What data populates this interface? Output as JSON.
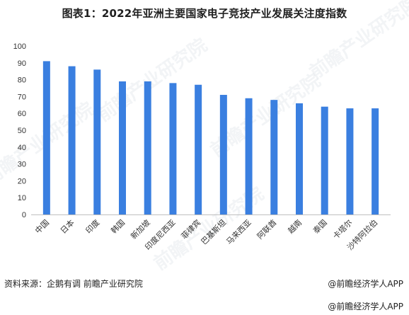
{
  "title": "图表1：2022年亚洲主要国家电子竞技产业发展关注度指数",
  "source": "资料来源：企鹅有调 前瞻产业研究院",
  "credit": "@前瞻经济学人APP",
  "credit_bottom": "@前瞻经济学人APP",
  "watermark": "前瞻产业研究院",
  "colors": {
    "bar": "#3a7fe0",
    "axis": "#bfbfbf",
    "text": "#333333"
  },
  "chart_data": {
    "type": "bar",
    "categories": [
      "中国",
      "日本",
      "印度",
      "韩国",
      "新加坡",
      "印度尼西亚",
      "菲律宾",
      "巴基斯坦",
      "马来西亚",
      "阿联酋",
      "越南",
      "泰国",
      "卡塔尔",
      "沙特阿拉伯"
    ],
    "values": [
      91,
      88,
      86,
      79,
      79,
      78,
      77,
      71,
      69,
      68,
      66,
      64,
      63,
      63
    ],
    "ylim": [
      0,
      100
    ],
    "yticks": [
      0,
      10,
      20,
      30,
      40,
      50,
      60,
      70,
      80,
      90,
      100
    ],
    "grid": false,
    "xlabel": "",
    "ylabel": ""
  }
}
